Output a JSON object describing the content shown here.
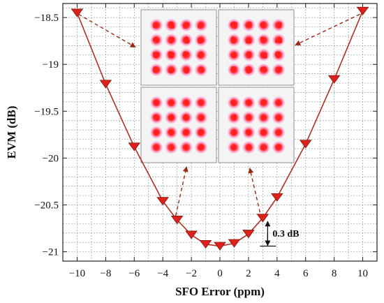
{
  "chart_data": {
    "type": "line",
    "xlabel": "SFO Error (ppm)",
    "ylabel": "EVM (dB)",
    "xlim": [
      -11,
      11
    ],
    "ylim": [
      -21.1,
      -18.35
    ],
    "xticks": [
      -10,
      -8,
      -6,
      -4,
      -2,
      0,
      2,
      4,
      6,
      8,
      10
    ],
    "yticks": [
      -18.5,
      -19,
      -19.5,
      -20,
      -20.5,
      -21
    ],
    "grid": true,
    "series": [
      {
        "marker": "triangle-down",
        "color": "#b0301e",
        "x": [
          -10,
          -8,
          -6,
          -4,
          -3,
          -2,
          -1,
          0,
          1,
          2,
          3,
          4,
          6,
          8,
          10
        ],
        "y": [
          -18.45,
          -19.21,
          -19.88,
          -20.46,
          -20.66,
          -20.82,
          -20.92,
          -20.94,
          -20.91,
          -20.81,
          -20.64,
          -20.42,
          -19.85,
          -19.16,
          -18.43
        ]
      }
    ],
    "annotations": [
      {
        "text": "0.3 dB",
        "x_from": 3,
        "y_from": -20.64,
        "y_to": -20.94
      }
    ],
    "insets": [
      {
        "name": "constellation-top-left",
        "target_x": -8.6
      },
      {
        "name": "constellation-top-right",
        "target_x": 8.6
      },
      {
        "name": "constellation-bottom-left",
        "target_x": -3
      },
      {
        "name": "constellation-bottom-right",
        "target_x": 3
      }
    ]
  },
  "colors": {
    "line": "#b0301e",
    "marker": "#e0201a",
    "arrow": "#9a2a14",
    "dot": "#ff2020",
    "halo": "#ff5fae"
  }
}
